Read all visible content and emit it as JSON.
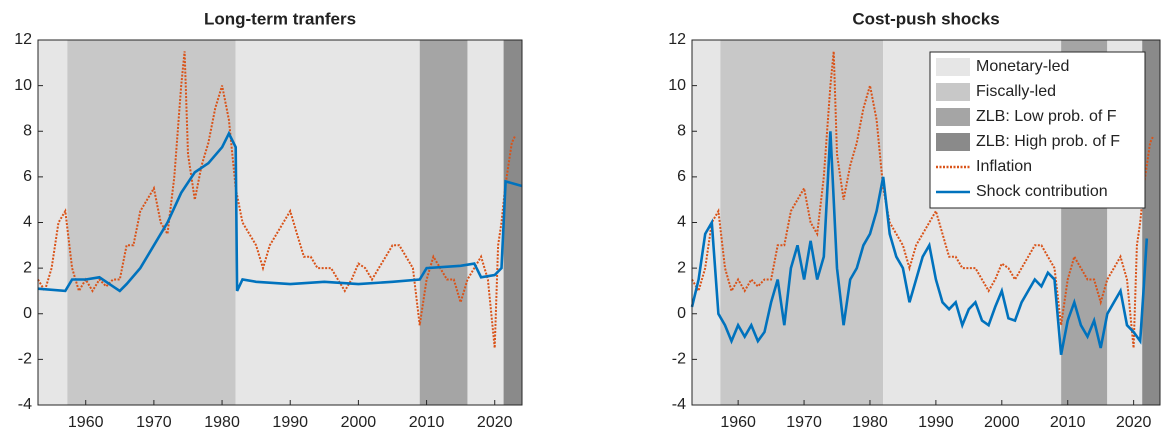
{
  "chart_data": [
    {
      "type": "line",
      "title": "Long-term tranfers",
      "xlim": [
        1953,
        2024
      ],
      "xticks": [
        1960,
        1970,
        1980,
        1990,
        2000,
        2010,
        2020
      ],
      "ylim": [
        -4,
        12
      ],
      "yticks": [
        -4,
        -2,
        0,
        2,
        4,
        6,
        8,
        10,
        12
      ],
      "regimes": [
        {
          "name": "Monetary-led",
          "color": "#e6e6e6"
        },
        {
          "name": "Fiscally-led",
          "color": "#c8c8c8"
        },
        {
          "name": "ZLB: Low prob. of F",
          "color": "#a5a5a5"
        },
        {
          "name": "ZLB: High prob. of F",
          "color": "#8a8a8a"
        }
      ],
      "periods": [
        {
          "regime": 0,
          "start": 1953,
          "end": 1957.3
        },
        {
          "regime": 1,
          "start": 1957.3,
          "end": 1982
        },
        {
          "regime": 0,
          "start": 1982,
          "end": 2009
        },
        {
          "regime": 2,
          "start": 2009,
          "end": 2016
        },
        {
          "regime": 0,
          "start": 2016,
          "end": 2021.3
        },
        {
          "regime": 3,
          "start": 2021.3,
          "end": 2024
        }
      ],
      "series": [
        {
          "name": "Inflation",
          "color": "#d95319",
          "style": "dotted",
          "x": [
            1953,
            1954,
            1955,
            1956,
            1957,
            1958,
            1959,
            1960,
            1961,
            1962,
            1963,
            1964,
            1965,
            1966,
            1967,
            1968,
            1969,
            1970,
            1971,
            1972,
            1973,
            1974,
            1974.5,
            1975,
            1976,
            1977,
            1978,
            1979,
            1980,
            1981,
            1982,
            1983,
            1984,
            1985,
            1986,
            1987,
            1988,
            1989,
            1990,
            1991,
            1992,
            1993,
            1994,
            1995,
            1996,
            1997,
            1998,
            1999,
            2000,
            2001,
            2002,
            2003,
            2004,
            2005,
            2006,
            2007,
            2008,
            2009,
            2010,
            2011,
            2012,
            2013,
            2014,
            2015,
            2016,
            2017,
            2018,
            2019,
            2020,
            2020.5,
            2021,
            2021.5,
            2022,
            2022.5,
            2023
          ],
          "values": [
            1.5,
            1,
            2,
            4,
            4.5,
            2,
            1,
            1.5,
            1,
            1.5,
            1.2,
            1.5,
            1.5,
            3,
            3,
            4.5,
            5,
            5.5,
            4,
            3.5,
            6,
            10,
            11.5,
            7,
            5,
            6.5,
            7.5,
            9,
            10,
            8.5,
            5.5,
            4,
            3.5,
            3,
            2,
            3,
            3.5,
            4,
            4.5,
            3.5,
            2.5,
            2.5,
            2,
            2,
            2,
            1.5,
            1,
            1.5,
            2.2,
            2,
            1.5,
            2,
            2.5,
            3,
            3,
            2.5,
            2,
            -0.5,
            1.5,
            2.5,
            2,
            1.5,
            1.5,
            0.5,
            1.5,
            2,
            2.5,
            1.5,
            -1.5,
            3,
            4,
            5.5,
            6.5,
            7.5,
            7.8
          ]
        },
        {
          "name": "Shock contribution",
          "color": "#0072bd",
          "style": "solid",
          "x": [
            1953,
            1957,
            1958,
            1960,
            1962,
            1964,
            1965,
            1966,
            1968,
            1970,
            1972,
            1974,
            1976,
            1978,
            1980,
            1981,
            1982,
            1982.2,
            1983,
            1985,
            1990,
            1995,
            2000,
            2005,
            2009,
            2010,
            2015,
            2017,
            2018,
            2020,
            2021,
            2021.6,
            2024
          ],
          "values": [
            1.1,
            1,
            1.5,
            1.5,
            1.6,
            1.2,
            1,
            1.3,
            2,
            3,
            4,
            5.3,
            6.2,
            6.6,
            7.3,
            7.9,
            7.3,
            1,
            1.5,
            1.4,
            1.3,
            1.4,
            1.3,
            1.4,
            1.5,
            2,
            2.1,
            2.2,
            1.6,
            1.7,
            2,
            5.8,
            5.6
          ]
        }
      ]
    },
    {
      "type": "line",
      "title": "Cost-push shocks",
      "legend": "northeast",
      "xlim": [
        1953,
        2024
      ],
      "xticks": [
        1960,
        1970,
        1980,
        1990,
        2000,
        2010,
        2020
      ],
      "ylim": [
        -4,
        12
      ],
      "yticks": [
        -4,
        -2,
        0,
        2,
        4,
        6,
        8,
        10,
        12
      ],
      "regimes": [
        {
          "name": "Monetary-led",
          "color": "#e6e6e6"
        },
        {
          "name": "Fiscally-led",
          "color": "#c8c8c8"
        },
        {
          "name": "ZLB: Low prob. of F",
          "color": "#a5a5a5"
        },
        {
          "name": "ZLB: High prob. of F",
          "color": "#8a8a8a"
        }
      ],
      "periods": [
        {
          "regime": 0,
          "start": 1953,
          "end": 1957.3
        },
        {
          "regime": 1,
          "start": 1957.3,
          "end": 1982
        },
        {
          "regime": 0,
          "start": 1982,
          "end": 2009
        },
        {
          "regime": 2,
          "start": 2009,
          "end": 2016
        },
        {
          "regime": 0,
          "start": 2016,
          "end": 2021.3
        },
        {
          "regime": 3,
          "start": 2021.3,
          "end": 2024
        }
      ],
      "series": [
        {
          "name": "Inflation",
          "color": "#d95319",
          "style": "dotted",
          "x": [
            1953,
            1954,
            1955,
            1956,
            1957,
            1958,
            1959,
            1960,
            1961,
            1962,
            1963,
            1964,
            1965,
            1966,
            1967,
            1968,
            1969,
            1970,
            1971,
            1972,
            1973,
            1974,
            1974.5,
            1975,
            1976,
            1977,
            1978,
            1979,
            1980,
            1981,
            1982,
            1983,
            1984,
            1985,
            1986,
            1987,
            1988,
            1989,
            1990,
            1991,
            1992,
            1993,
            1994,
            1995,
            1996,
            1997,
            1998,
            1999,
            2000,
            2001,
            2002,
            2003,
            2004,
            2005,
            2006,
            2007,
            2008,
            2009,
            2010,
            2011,
            2012,
            2013,
            2014,
            2015,
            2016,
            2017,
            2018,
            2019,
            2020,
            2020.5,
            2021,
            2021.5,
            2022,
            2022.5,
            2023
          ],
          "values": [
            1.5,
            1,
            2,
            4,
            4.5,
            2,
            1,
            1.5,
            1,
            1.5,
            1.2,
            1.5,
            1.5,
            3,
            3,
            4.5,
            5,
            5.5,
            4,
            3.5,
            6,
            10,
            11.5,
            7,
            5,
            6.5,
            7.5,
            9,
            10,
            8.5,
            5.5,
            4,
            3.5,
            3,
            2,
            3,
            3.5,
            4,
            4.5,
            3.5,
            2.5,
            2.5,
            2,
            2,
            2,
            1.5,
            1,
            1.5,
            2.2,
            2,
            1.5,
            2,
            2.5,
            3,
            3,
            2.5,
            2,
            -0.5,
            1.5,
            2.5,
            2,
            1.5,
            1.5,
            0.5,
            1.5,
            2,
            2.5,
            1.5,
            -1.5,
            3,
            4,
            5.5,
            6.5,
            7.5,
            7.8
          ]
        },
        {
          "name": "Shock contribution",
          "color": "#0072bd",
          "style": "solid",
          "x": [
            1953,
            1954,
            1955,
            1956,
            1957,
            1958,
            1959,
            1960,
            1961,
            1962,
            1963,
            1964,
            1965,
            1966,
            1967,
            1968,
            1969,
            1970,
            1971,
            1972,
            1973,
            1974,
            1975,
            1976,
            1977,
            1978,
            1979,
            1980,
            1981,
            1982,
            1983,
            1984,
            1985,
            1986,
            1987,
            1988,
            1989,
            1990,
            1991,
            1992,
            1993,
            1994,
            1995,
            1996,
            1997,
            1998,
            1999,
            2000,
            2001,
            2002,
            2003,
            2004,
            2005,
            2006,
            2007,
            2008,
            2009,
            2010,
            2011,
            2012,
            2013,
            2014,
            2015,
            2016,
            2017,
            2018,
            2019,
            2020,
            2021,
            2021.5,
            2022
          ],
          "values": [
            0.3,
            1.5,
            3.5,
            4,
            0,
            -0.5,
            -1.2,
            -0.5,
            -1,
            -0.5,
            -1.2,
            -0.8,
            0.5,
            1.5,
            -0.5,
            2,
            3,
            1.5,
            3.2,
            1.5,
            2.5,
            8,
            2,
            -0.5,
            1.5,
            2,
            3,
            3.5,
            4.5,
            6,
            3.5,
            2.5,
            2,
            0.5,
            1.5,
            2.5,
            3,
            1.5,
            0.5,
            0.2,
            0.5,
            -0.5,
            0.2,
            0.5,
            -0.3,
            -0.5,
            0.3,
            1,
            -0.2,
            -0.3,
            0.5,
            1,
            1.5,
            1.2,
            1.8,
            1.5,
            -1.8,
            -0.3,
            0.5,
            -0.5,
            -1,
            -0.3,
            -1.5,
            0,
            0.5,
            1,
            -0.5,
            -0.8,
            -1.2,
            1,
            3.3
          ]
        }
      ]
    }
  ]
}
